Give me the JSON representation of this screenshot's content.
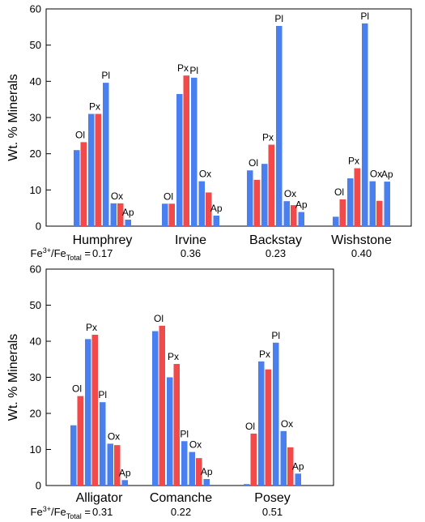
{
  "colors": {
    "blue": "#4A7FF0",
    "red": "#F24A4A",
    "frame": "#000000"
  },
  "chart_data": [
    {
      "type": "bar",
      "ylabel": "Wt. % Minerals",
      "ylim": [
        0,
        60
      ],
      "yticks": [
        0,
        10,
        20,
        30,
        40,
        50,
        60
      ],
      "fe_prefix": "Fe3+/FeTotal = ",
      "groups": [
        {
          "name": "Humphrey",
          "fe": "0.17",
          "minerals": [
            {
              "label": "Ol",
              "blue": 21,
              "red": 23.2
            },
            {
              "label": "Px",
              "blue": 31,
              "red": 31
            },
            {
              "label": "Pl",
              "blue": 39.6,
              "red": null
            },
            {
              "label": "Ox",
              "blue": 6.3,
              "red": 6.3
            },
            {
              "label": "Ap",
              "blue": 1.8,
              "red": null
            }
          ]
        },
        {
          "name": "Irvine",
          "fe": "0.36",
          "minerals": [
            {
              "label": "Ol",
              "blue": 6.2,
              "red": 6.2
            },
            {
              "label": "Px",
              "blue": 36.5,
              "red": 41.6
            },
            {
              "label": "Pl",
              "blue": 41,
              "red": null
            },
            {
              "label": "Ox",
              "blue": 12.4,
              "red": 9.3
            },
            {
              "label": "Ap",
              "blue": 2.9,
              "red": null
            }
          ]
        },
        {
          "name": "Backstay",
          "fe": "0.23",
          "minerals": [
            {
              "label": "Ol",
              "blue": 15.4,
              "red": 12.8
            },
            {
              "label": "Px",
              "blue": 17.2,
              "red": 22.5
            },
            {
              "label": "Pl",
              "blue": 55.3,
              "red": null
            },
            {
              "label": "Ox",
              "blue": 6.9,
              "red": 5.8
            },
            {
              "label": "Ap",
              "blue": 3.9,
              "red": null
            }
          ]
        },
        {
          "name": "Wishstone",
          "fe": "0.40",
          "minerals": [
            {
              "label": "Ol",
              "blue": 2.6,
              "red": 7.4
            },
            {
              "label": "Px",
              "blue": 13.2,
              "red": 16
            },
            {
              "label": "Pl",
              "blue": 56,
              "red": null
            },
            {
              "label": "Ox",
              "blue": 12.4,
              "red": 7
            },
            {
              "label": "Ap",
              "blue": 12.3,
              "red": null
            }
          ]
        }
      ]
    },
    {
      "type": "bar",
      "ylabel": "Wt. % Minerals",
      "ylim": [
        0,
        60
      ],
      "yticks": [
        0,
        10,
        20,
        30,
        40,
        50,
        60
      ],
      "fe_prefix": "Fe3+/FeTotal = ",
      "groups": [
        {
          "name": "Alligator",
          "fe": "0.31",
          "minerals": [
            {
              "label": "Ol",
              "blue": 16.7,
              "red": 24.8
            },
            {
              "label": "Px",
              "blue": 40.6,
              "red": 41.8
            },
            {
              "label": "Pl",
              "blue": 23.1,
              "red": null
            },
            {
              "label": "Ox",
              "blue": 11.6,
              "red": 11.2
            },
            {
              "label": "Ap",
              "blue": 1.5,
              "red": null
            }
          ]
        },
        {
          "name": "Comanche",
          "fe": "0.22",
          "minerals": [
            {
              "label": "Ol",
              "blue": 42.8,
              "red": 44.3
            },
            {
              "label": "Px",
              "blue": 30,
              "red": 33.7
            },
            {
              "label": "Pl",
              "blue": 12.3,
              "red": null
            },
            {
              "label": "Ox",
              "blue": 9.3,
              "red": 7.6
            },
            {
              "label": "Ap",
              "blue": 1.8,
              "red": null
            }
          ]
        },
        {
          "name": "Posey",
          "fe": "0.51",
          "minerals": [
            {
              "label": "Ol",
              "blue": 0.4,
              "red": 14.4
            },
            {
              "label": "Px",
              "blue": 34.4,
              "red": 32.2
            },
            {
              "label": "Pl",
              "blue": 39.6,
              "red": null
            },
            {
              "label": "Ox",
              "blue": 15.1,
              "red": 10.6
            },
            {
              "label": "Ap",
              "blue": 3.3,
              "red": null
            }
          ]
        }
      ]
    }
  ]
}
